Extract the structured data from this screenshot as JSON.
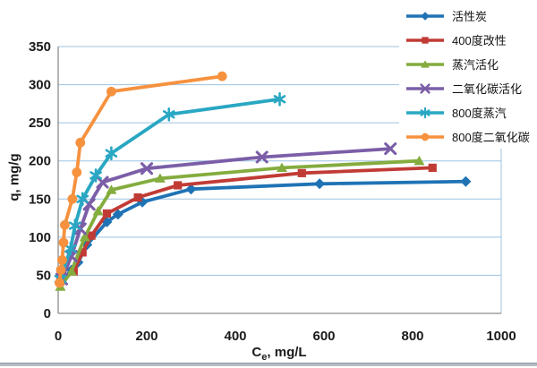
{
  "chart_data": {
    "type": "line",
    "title": "",
    "xlabel": {
      "base": "C",
      "sub": "e",
      "rest": ", mg/L"
    },
    "ylabel": "q, mg/g",
    "xlim": [
      0,
      1000
    ],
    "ylim": [
      0,
      350
    ],
    "xticks": [
      0,
      200,
      400,
      600,
      800,
      1000
    ],
    "yticks": [
      0,
      50,
      100,
      150,
      200,
      250,
      300,
      350
    ],
    "grid": "horizontal",
    "grid_color": "#9DC3E0",
    "axis_color": "#8C8C8C",
    "tick_label_color": "#1A1A1A",
    "legend_position": "top-right",
    "series": [
      {
        "name": "活性炭",
        "color": "#1F73B5",
        "marker": "diamond",
        "x": [
          5,
          30,
          45,
          65,
          110,
          135,
          190,
          300,
          590,
          920
        ],
        "y": [
          40,
          57,
          67,
          90,
          120,
          130,
          146,
          163,
          170,
          173
        ]
      },
      {
        "name": "400度改性",
        "color": "#C13B35",
        "marker": "square",
        "x": [
          5,
          35,
          55,
          75,
          110,
          180,
          270,
          550,
          845
        ],
        "y": [
          42,
          55,
          80,
          102,
          131,
          152,
          168,
          184,
          191
        ]
      },
      {
        "name": "蒸汽活化",
        "color": "#84AC3E",
        "marker": "triangle",
        "x": [
          5,
          30,
          60,
          90,
          120,
          230,
          505,
          815
        ],
        "y": [
          35,
          55,
          100,
          134,
          162,
          177,
          191,
          200
        ]
      },
      {
        "name": "二氧化碳活化",
        "color": "#7B5EA7",
        "marker": "x",
        "x": [
          8,
          30,
          50,
          70,
          100,
          200,
          460,
          750
        ],
        "y": [
          45,
          75,
          111,
          143,
          172,
          190,
          205,
          216
        ]
      },
      {
        "name": "800度蒸汽",
        "color": "#29A7C3",
        "marker": "asterisk",
        "x": [
          5,
          28,
          38,
          55,
          85,
          120,
          250,
          500
        ],
        "y": [
          45,
          85,
          115,
          150,
          181,
          210,
          261,
          281
        ]
      },
      {
        "name": "800度二氧化碳",
        "color": "#F6913E",
        "marker": "circle",
        "x": [
          3,
          6,
          9,
          12,
          15,
          32,
          42,
          50,
          120,
          370
        ],
        "y": [
          40,
          57,
          70,
          93,
          116,
          150,
          185,
          224,
          291,
          311
        ]
      }
    ]
  },
  "page": {
    "bottom_border_color": "#8d939c"
  }
}
